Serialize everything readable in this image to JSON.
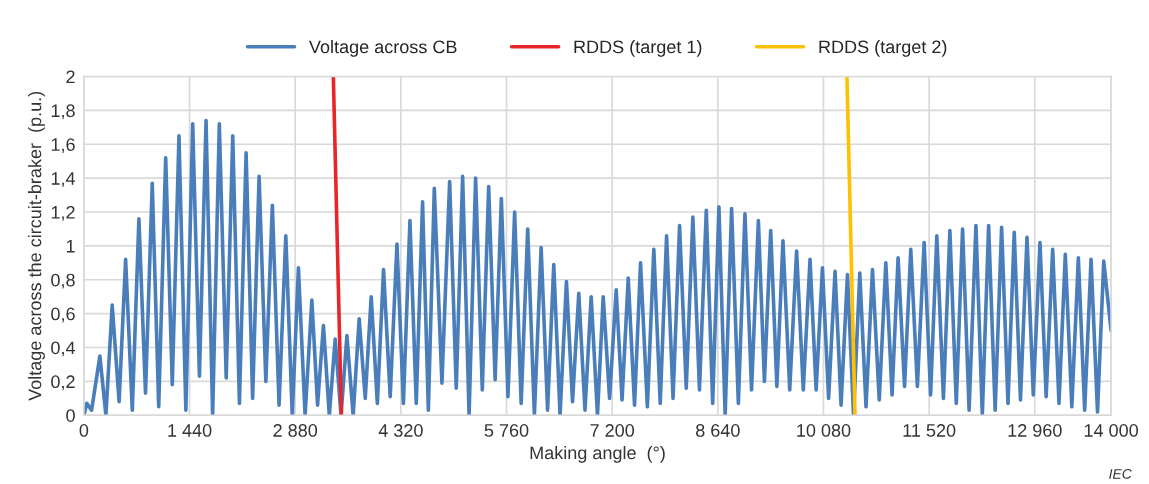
{
  "chart_data": {
    "type": "line",
    "xlabel": "Making angle  (°)",
    "ylabel": "Voltage across the circuit-braker  (p.u.)",
    "xlim": [
      0,
      14000
    ],
    "ylim": [
      0,
      2
    ],
    "xticks": [
      0,
      {
        "value": 1440,
        "label": "1 440"
      },
      {
        "value": 2880,
        "label": "2 880"
      },
      {
        "value": 4320,
        "label": "4 320"
      },
      {
        "value": 5760,
        "label": "5 760"
      },
      {
        "value": 7200,
        "label": "7 200"
      },
      {
        "value": 8640,
        "label": "8 640"
      },
      {
        "value": 10080,
        "label": "10 080"
      },
      {
        "value": 11520,
        "label": "11 520"
      },
      {
        "value": 12960,
        "label": "12 960"
      },
      {
        "value": 14000,
        "label": "14 000"
      }
    ],
    "yticks": [
      0,
      {
        "value": 0.2,
        "label": "0,2"
      },
      {
        "value": 0.4,
        "label": "0,4"
      },
      {
        "value": 0.6,
        "label": "0,6"
      },
      {
        "value": 0.8,
        "label": "0,8"
      },
      1,
      {
        "value": 1.2,
        "label": "1,2"
      },
      {
        "value": 1.4,
        "label": "1,4"
      },
      {
        "value": 1.6,
        "label": "1,6"
      },
      {
        "value": 1.8,
        "label": "1,8"
      },
      2
    ],
    "grid": true,
    "legend": "top",
    "marker": "none",
    "line_style": "solid",
    "annotations": [
      "IEC"
    ],
    "series": [
      {
        "name": "Voltage across CB",
        "color": "#4a7ebb",
        "x": [
          0,
          40,
          105,
          218,
          300,
          386,
          480,
          569,
          660,
          750,
          840,
          932,
          1020,
          1115,
          1205,
          1296,
          1390,
          1483,
          1575,
          1665,
          1755,
          1846,
          1940,
          2029,
          2120,
          2211,
          2300,
          2388,
          2480,
          2569,
          2660,
          2752,
          2840,
          2924,
          3015,
          3107,
          3185,
          3265,
          3345,
          3425,
          3505,
          3585,
          3670,
          3752,
          3835,
          3916,
          4000,
          4084,
          4175,
          4267,
          4355,
          4444,
          4530,
          4616,
          4695,
          4776,
          4880,
          4985,
          5075,
          5162,
          5250,
          5339,
          5430,
          5517,
          5605,
          5690,
          5780,
          5871,
          5960,
          6049,
          6140,
          6232,
          6320,
          6404,
          6490,
          6577,
          6660,
          6745,
          6830,
          6914,
          7000,
          7078,
          7165,
          7255,
          7335,
          7419,
          7505,
          7587,
          7680,
          7768,
          7855,
          7942,
          8030,
          8119,
          8210,
          8300,
          8390,
          8483,
          8570,
          8655,
          8740,
          8828,
          8920,
          9010,
          9100,
          9193,
          9275,
          9361,
          9445,
          9528,
          9620,
          9714,
          9805,
          9897,
          9980,
          10066,
          10150,
          10238,
          10320,
          10407,
          10490,
          10575,
          10660,
          10748,
          10840,
          10930,
          11015,
          11097,
          11185,
          11270,
          11360,
          11452,
          11540,
          11625,
          11715,
          11803,
          11890,
          11976,
          12065,
          12158,
          12245,
          12331,
          12420,
          12508,
          12595,
          12680,
          12765,
          12854,
          12940,
          13031,
          13115,
          13204,
          13290,
          13376,
          13465,
          13554,
          13640,
          13727,
          13815,
          13900,
          14000
        ],
        "values": [
          0,
          0.07,
          0.03,
          0.35,
          0,
          0.65,
          0.08,
          0.92,
          0.03,
          1.16,
          0.13,
          1.37,
          0.05,
          1.52,
          0.18,
          1.65,
          0.03,
          1.72,
          0.23,
          1.74,
          0,
          1.72,
          0.22,
          1.65,
          0.07,
          1.55,
          0.1,
          1.41,
          0.2,
          1.24,
          0.06,
          1.06,
          0,
          0.87,
          0,
          0.68,
          0.06,
          0.53,
          0,
          0.45,
          0,
          0.47,
          0,
          0.57,
          0.1,
          0.7,
          0.07,
          0.86,
          0.11,
          1.01,
          0.07,
          1.15,
          0.07,
          1.26,
          0.03,
          1.34,
          0.19,
          1.38,
          0.16,
          1.41,
          0,
          1.4,
          0.15,
          1.35,
          0.21,
          1.28,
          0.11,
          1.2,
          0.07,
          1.1,
          0,
          0.99,
          0.03,
          0.89,
          0,
          0.79,
          0.08,
          0.72,
          0.03,
          0.7,
          0,
          0.7,
          0.1,
          0.74,
          0.09,
          0.81,
          0.06,
          0.9,
          0.05,
          0.98,
          0.07,
          1.06,
          0.1,
          1.12,
          0.16,
          1.17,
          0.15,
          1.21,
          0.07,
          1.23,
          0,
          1.22,
          0.07,
          1.19,
          0.15,
          1.15,
          0.2,
          1.09,
          0.17,
          1.03,
          0.15,
          0.97,
          0.15,
          0.92,
          0.15,
          0.87,
          0.1,
          0.85,
          0.06,
          0.83,
          0,
          0.84,
          0.05,
          0.86,
          0.09,
          0.9,
          0.12,
          0.93,
          0.17,
          0.98,
          0.17,
          1.02,
          0.12,
          1.06,
          0.1,
          1.09,
          0.07,
          1.1,
          0.03,
          1.12,
          0,
          1.12,
          0.03,
          1.11,
          0.07,
          1.08,
          0.09,
          1.05,
          0.12,
          1.02,
          0.11,
          0.98,
          0.07,
          0.95,
          0.05,
          0.93,
          0.03,
          0.92,
          0.02,
          0.91,
          0.5
        ]
      },
      {
        "name": "RDDS (target 1)",
        "color": "#e8262a",
        "x": [
          3400,
          3510
        ],
        "values": [
          2,
          0
        ]
      },
      {
        "name": "RDDS (target 2)",
        "color": "#ffc000",
        "x": [
          10400,
          10510
        ],
        "values": [
          2,
          0
        ]
      }
    ]
  }
}
